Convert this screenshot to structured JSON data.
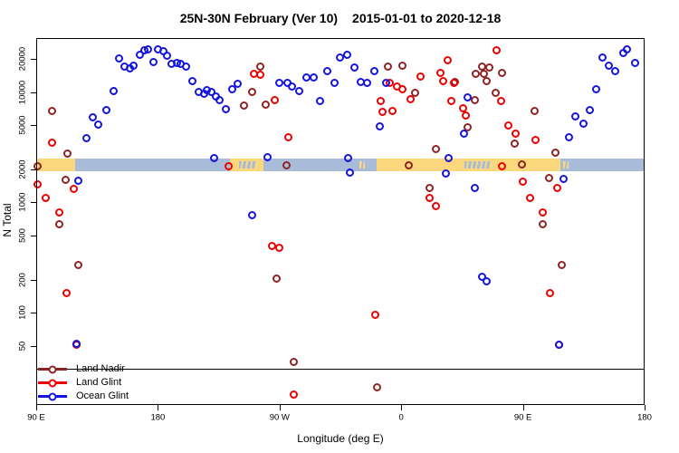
{
  "chart_data": {
    "type": "scatter",
    "title_left": "25N-30N February (Ver 10)",
    "title_right": "2015-01-01 to 2020-12-18",
    "xlabel": "Longitude (deg E)",
    "ylabel": "N Total",
    "x_axis": {
      "unit": "degrees eastward along axis from left edge (axis starts at 90E, wraps around globe to 180)",
      "xlim": [
        0,
        450
      ],
      "ticks": [
        {
          "deg": 0,
          "label": "90 E"
        },
        {
          "deg": 90,
          "label": "180"
        },
        {
          "deg": 180,
          "label": "90 W"
        },
        {
          "deg": 270,
          "label": "0"
        },
        {
          "deg": 360,
          "label": "90 E"
        },
        {
          "deg": 450,
          "label": "180"
        }
      ]
    },
    "y_axis": {
      "scale": "log",
      "ylim": [
        14.6,
        30900
      ],
      "ticks": [
        50,
        100,
        200,
        500,
        1000,
        2000,
        5000,
        10000,
        20000
      ]
    },
    "reference_line": {
      "n": 31
    },
    "map_strip": {
      "n_top": 2500,
      "n_bottom": 1900,
      "land_color": "#fbd77d",
      "ocean_color": "#a8bcd9",
      "segments": [
        {
          "surface": "land",
          "from": 0,
          "to": 29
        },
        {
          "surface": "ocean",
          "from": 29,
          "to": 143
        },
        {
          "surface": "land",
          "from": 143,
          "to": 168
        },
        {
          "surface": "ocean",
          "from": 168,
          "to": 252
        },
        {
          "surface": "land",
          "from": 252,
          "to": 388
        },
        {
          "surface": "ocean",
          "from": 388,
          "to": 450
        }
      ],
      "patches": [
        {
          "surface": "ocean",
          "from": 150,
          "to": 162
        },
        {
          "surface": "land",
          "from": 239,
          "to": 243
        },
        {
          "surface": "ocean",
          "from": 317,
          "to": 336
        },
        {
          "surface": "land",
          "from": 390,
          "to": 394
        }
      ]
    },
    "series": [
      {
        "name": "Land Nadir",
        "color": "#8e2323",
        "points": [
          [
            11.5,
            6800
          ],
          [
            23,
            2770
          ],
          [
            0.7,
            2130
          ],
          [
            21.5,
            1610
          ],
          [
            17.1,
            640
          ],
          [
            31.1,
            270
          ],
          [
            153.5,
            7550
          ],
          [
            165.5,
            17000
          ],
          [
            160,
            10000
          ],
          [
            170,
            7700
          ],
          [
            184.9,
            2180
          ],
          [
            177.8,
            205
          ],
          [
            190.7,
            36
          ],
          [
            252.2,
            21
          ],
          [
            260,
            17100
          ],
          [
            271,
            17500
          ],
          [
            280,
            9800
          ],
          [
            290.7,
            1360
          ],
          [
            295.5,
            3050
          ],
          [
            275.5,
            2180
          ],
          [
            310,
            12400
          ],
          [
            330,
            17100
          ],
          [
            334.9,
            16600
          ],
          [
            325.1,
            14600
          ],
          [
            331.1,
            14600
          ],
          [
            344.5,
            14900
          ],
          [
            333.3,
            12700
          ],
          [
            340,
            9800
          ],
          [
            324.5,
            8500
          ],
          [
            319.3,
            4800
          ],
          [
            354,
            3400
          ],
          [
            359,
            2200
          ],
          [
            368.9,
            6700
          ],
          [
            374.9,
            640
          ],
          [
            379.3,
            1650
          ],
          [
            383.8,
            2830
          ],
          [
            388.9,
            270
          ]
        ]
      },
      {
        "name": "Land Glint",
        "color": "#ee0000",
        "points": [
          [
            11.5,
            3500
          ],
          [
            1.1,
            1460
          ],
          [
            27.8,
            1330
          ],
          [
            7.3,
            1100
          ],
          [
            17.1,
            810
          ],
          [
            22.2,
            152
          ],
          [
            29.5,
            51
          ],
          [
            161,
            14700
          ],
          [
            166,
            14300
          ],
          [
            176.7,
            8400
          ],
          [
            186.2,
            3900
          ],
          [
            142.2,
            2140
          ],
          [
            174.5,
            400
          ],
          [
            179.5,
            385
          ],
          [
            190.7,
            18
          ],
          [
            251.1,
            96
          ],
          [
            254.7,
            8300
          ],
          [
            256,
            6600
          ],
          [
            263.8,
            6700
          ],
          [
            261.8,
            12100
          ],
          [
            267.1,
            11300
          ],
          [
            271,
            10700
          ],
          [
            276.7,
            8600
          ],
          [
            284.5,
            13800
          ],
          [
            299,
            14900
          ],
          [
            300.7,
            12500
          ],
          [
            304.5,
            19400
          ],
          [
            308.9,
            12100
          ],
          [
            306.7,
            8300
          ],
          [
            290.7,
            1100
          ],
          [
            295.5,
            920
          ],
          [
            340.5,
            23800
          ],
          [
            343.8,
            8300
          ],
          [
            315.5,
            7200
          ],
          [
            317.8,
            6100
          ],
          [
            348.9,
            5000
          ],
          [
            354.5,
            4200
          ],
          [
            344.4,
            2120
          ],
          [
            360,
            1550
          ],
          [
            365.5,
            1100
          ],
          [
            369.5,
            3700
          ],
          [
            374.9,
            810
          ],
          [
            385.1,
            1360
          ],
          [
            380,
            152
          ],
          [
            386.9,
            51
          ]
        ]
      },
      {
        "name": "Ocean Glint",
        "color": "#1414e0",
        "points": [
          [
            36.9,
            3800
          ],
          [
            42,
            5900
          ],
          [
            46,
            5100
          ],
          [
            52,
            6900
          ],
          [
            57.3,
            10200
          ],
          [
            61.5,
            20100
          ],
          [
            65.3,
            16900
          ],
          [
            69.3,
            16300
          ],
          [
            72,
            17200
          ],
          [
            76.9,
            21700
          ],
          [
            80,
            24100
          ],
          [
            82.7,
            24400
          ],
          [
            86.5,
            18800
          ],
          [
            89.8,
            24200
          ],
          [
            93.8,
            23300
          ],
          [
            96.5,
            21300
          ],
          [
            100.2,
            18100
          ],
          [
            104,
            18300
          ],
          [
            107.1,
            18100
          ],
          [
            110.5,
            17000
          ],
          [
            115.3,
            12600
          ],
          [
            120.2,
            10100
          ],
          [
            124,
            9700
          ],
          [
            126.2,
            10400
          ],
          [
            129.8,
            10000
          ],
          [
            132.7,
            9200
          ],
          [
            135.5,
            8500
          ],
          [
            140.2,
            7000
          ],
          [
            145.1,
            10700
          ],
          [
            149.1,
            11800
          ],
          [
            131.5,
            2530
          ],
          [
            31.1,
            1580
          ],
          [
            29.5,
            52
          ],
          [
            180,
            12100
          ],
          [
            186,
            12200
          ],
          [
            189.5,
            11200
          ],
          [
            194.5,
            10300
          ],
          [
            200,
            13700
          ],
          [
            205.5,
            13500
          ],
          [
            215.1,
            15500
          ],
          [
            220.5,
            12100
          ],
          [
            224.9,
            20700
          ],
          [
            230,
            21700
          ],
          [
            235.1,
            16600
          ],
          [
            240,
            12400
          ],
          [
            244.9,
            12200
          ],
          [
            250,
            15500
          ],
          [
            210,
            8300
          ],
          [
            254.4,
            4900
          ],
          [
            258.9,
            12100
          ],
          [
            171,
            2560
          ],
          [
            231,
            2540
          ],
          [
            232.2,
            1870
          ],
          [
            159.5,
            760
          ],
          [
            304.7,
            2500
          ],
          [
            303,
            1830
          ],
          [
            318.9,
            8900
          ],
          [
            316.2,
            4200
          ],
          [
            324.5,
            1360
          ],
          [
            329.5,
            210
          ],
          [
            332.9,
            194
          ],
          [
            390,
            1620
          ],
          [
            386.7,
            51
          ],
          [
            394,
            3900
          ],
          [
            398.5,
            6000
          ],
          [
            404.5,
            5200
          ],
          [
            409.5,
            6900
          ],
          [
            414.5,
            10700
          ],
          [
            418.9,
            20700
          ],
          [
            423.8,
            17500
          ],
          [
            428.2,
            15500
          ],
          [
            434,
            22800
          ],
          [
            437.1,
            24500
          ],
          [
            443.3,
            18400
          ]
        ]
      }
    ],
    "legend_position": "bottom-left"
  }
}
